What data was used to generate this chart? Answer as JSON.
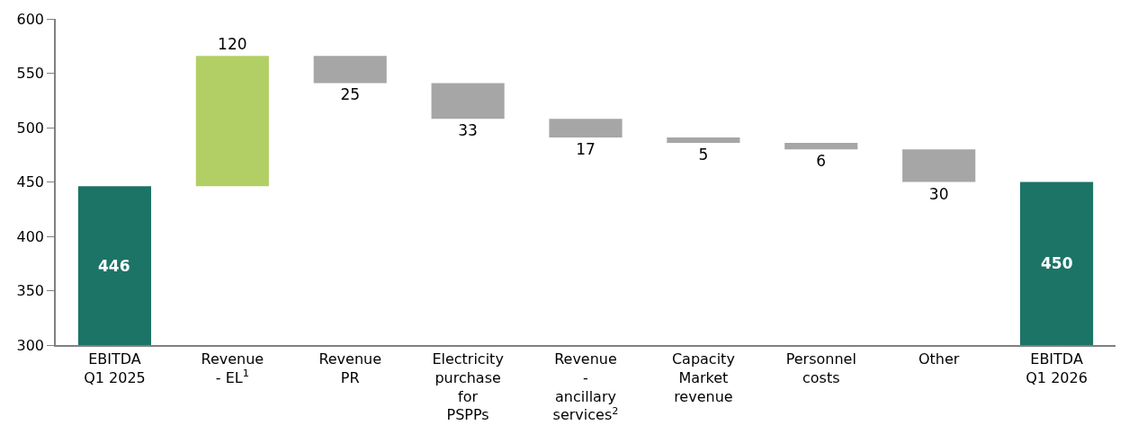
{
  "chart_data": {
    "type": "bar",
    "categories": [
      "EBITDA Q1 2025",
      "Revenue - EL$^{1}$",
      "Revenue PR",
      "Electricity purchase for PSPPs",
      "Revenue - ancillary services$^{2}$",
      "Capacity Market revenue",
      "Personnel costs",
      "Other",
      "EBITDA Q1 2026"
    ],
    "values": [
      446,
      120,
      -25,
      -33,
      -17,
      -5,
      -6,
      -30,
      450
    ],
    "base": [
      null,
      446,
      566,
      541,
      508,
      491,
      486,
      480,
      null
    ],
    "colors": [
      "#1b7466",
      "#b2cf66",
      "#a6a6a6",
      "#a6a6a6",
      "#a6a6a6",
      "#a6a6a6",
      "#a6a6a6",
      "#a6a6a6",
      "#1b7466"
    ],
    "value_labels": [
      "446",
      "120",
      "25",
      "33",
      "17",
      "5",
      "6",
      "30",
      "450"
    ],
    "ylim": [
      300,
      600
    ],
    "yticks": [
      300,
      350,
      400,
      450,
      500,
      550,
      600
    ]
  }
}
